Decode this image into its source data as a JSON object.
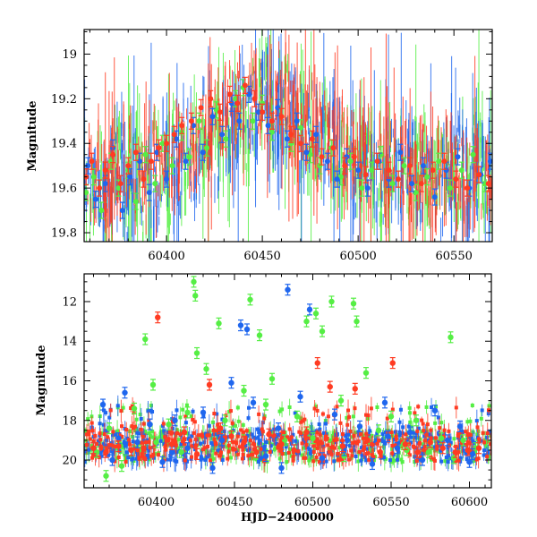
{
  "colors": {
    "green": "#55ee44",
    "blue": "#1f66ee",
    "red": "#ff3b22",
    "frame": "#000000"
  },
  "chart_data": [
    {
      "type": "scatter",
      "title": "",
      "xlabel": "",
      "ylabel": "Magnitude",
      "xlim": [
        60357,
        60570
      ],
      "ylim": [
        19.84,
        18.89
      ],
      "y_inverted": true,
      "grid": false,
      "x_ticks": [
        60400,
        60450,
        60500,
        60550
      ],
      "x_tick_labels": [
        "60400",
        "60450",
        "60500",
        "60550"
      ],
      "y_ticks": [
        19.0,
        19.2,
        19.4,
        19.6,
        19.8
      ],
      "y_tick_labels": [
        "19",
        "19.2",
        "19.4",
        "19.6",
        "19.8"
      ],
      "series": [
        {
          "color": "green",
          "x": [
            60358,
            60362,
            60366,
            60371,
            60375,
            60380,
            60384,
            60389,
            60394,
            60398,
            60403,
            60408,
            60412,
            60417,
            60421,
            60426,
            60431,
            60436,
            60440,
            60445,
            60450,
            60455,
            60460,
            60465,
            60470,
            60475,
            60480,
            60486,
            60491,
            60496,
            60502,
            60507,
            60512,
            60518,
            60524,
            60530,
            60536,
            60542,
            60548,
            60554,
            60560,
            60566
          ],
          "y": [
            19.62,
            19.55,
            19.7,
            19.48,
            19.6,
            19.52,
            19.66,
            19.45,
            19.58,
            19.4,
            19.5,
            19.35,
            19.46,
            19.3,
            19.42,
            19.25,
            19.38,
            19.2,
            19.15,
            19.3,
            19.22,
            19.35,
            19.28,
            19.4,
            19.33,
            19.45,
            19.5,
            19.42,
            19.55,
            19.48,
            19.6,
            19.52,
            19.45,
            19.58,
            19.5,
            19.62,
            19.55,
            19.48,
            19.6,
            19.52,
            19.45,
            19.58
          ]
        },
        {
          "color": "blue",
          "x": [
            60359,
            60363,
            60368,
            60372,
            60377,
            60381,
            60386,
            60391,
            60395,
            60400,
            60405,
            60410,
            60414,
            60419,
            60424,
            60429,
            60434,
            60438,
            60443,
            60448,
            60453,
            60458,
            60463,
            60468,
            60473,
            60478,
            60484,
            60489,
            60494,
            60500,
            60505,
            60511,
            60516,
            60522,
            60528,
            60534,
            60540,
            60546,
            60552,
            60558,
            60564,
            60569
          ],
          "y": [
            19.5,
            19.65,
            19.58,
            19.42,
            19.7,
            19.55,
            19.48,
            19.62,
            19.44,
            19.56,
            19.38,
            19.48,
            19.32,
            19.44,
            19.28,
            19.36,
            19.22,
            19.3,
            19.18,
            19.26,
            19.32,
            19.24,
            19.38,
            19.3,
            19.44,
            19.36,
            19.48,
            19.56,
            19.46,
            19.52,
            19.6,
            19.48,
            19.56,
            19.44,
            19.58,
            19.5,
            19.64,
            19.52,
            19.46,
            19.6,
            19.54,
            19.48
          ]
        },
        {
          "color": "red",
          "x": [
            60358,
            60361,
            60365,
            60368,
            60372,
            60376,
            60380,
            60384,
            60388,
            60392,
            60396,
            60400,
            60404,
            60408,
            60413,
            60418,
            60423,
            60428,
            60433,
            60437,
            60441,
            60446,
            60450,
            60455,
            60460,
            60465,
            60470,
            60476,
            60481,
            60487,
            60493,
            60498,
            60504,
            60510,
            60516,
            60521,
            60527,
            60533,
            60539,
            60545,
            60551,
            60557,
            60563,
            60568
          ],
          "y": [
            19.55,
            19.48,
            19.6,
            19.52,
            19.45,
            19.58,
            19.5,
            19.44,
            19.56,
            19.48,
            19.42,
            19.4,
            19.36,
            19.32,
            19.3,
            19.24,
            19.2,
            19.26,
            19.18,
            19.22,
            19.14,
            19.2,
            19.26,
            19.3,
            19.28,
            19.36,
            19.4,
            19.38,
            19.46,
            19.42,
            19.5,
            19.46,
            19.54,
            19.48,
            19.52,
            19.56,
            19.5,
            19.58,
            19.52,
            19.48,
            19.56,
            19.6,
            19.54,
            19.58
          ]
        }
      ]
    },
    {
      "type": "scatter",
      "title": "",
      "xlabel": "HJD−2400000",
      "ylabel": "Magnitude",
      "xlim": [
        60354,
        60614
      ],
      "ylim": [
        21.4,
        10.6
      ],
      "y_inverted": true,
      "grid": false,
      "x_ticks": [
        60400,
        60450,
        60500,
        60550,
        60600
      ],
      "x_tick_labels": [
        "60400",
        "60450",
        "60500",
        "60550",
        "60600"
      ],
      "y_ticks": [
        12,
        14,
        16,
        18,
        20
      ],
      "y_tick_labels": [
        "12",
        "14",
        "16",
        "18",
        "20"
      ],
      "series": [
        {
          "color": "green",
          "x": [
            60362,
            60370,
            60378,
            60386,
            60393,
            60400,
            60408,
            60416,
            60424,
            60425,
            60426,
            60432,
            60440,
            60448,
            60456,
            60460,
            60466,
            60474,
            60482,
            60490,
            60496,
            60502,
            60506,
            60512,
            60518,
            60526,
            60528,
            60534,
            60542,
            60550,
            60558,
            60566,
            60574,
            60582,
            60588,
            60596,
            60604,
            60368,
            60398,
            60420,
            60444,
            60470,
            60500,
            60520,
            60560,
            60590
          ],
          "y": [
            19.6,
            18.4,
            20.3,
            17.4,
            13.9,
            19.1,
            18.2,
            19.6,
            11.0,
            11.7,
            14.6,
            15.4,
            13.1,
            18.6,
            16.5,
            11.9,
            13.7,
            15.9,
            19.0,
            17.8,
            13.0,
            12.6,
            13.5,
            12.0,
            17.0,
            12.1,
            13.0,
            15.6,
            18.5,
            17.8,
            19.2,
            18.0,
            19.6,
            18.9,
            13.8,
            19.0,
            19.4,
            20.8,
            16.2,
            17.6,
            18.0,
            17.2,
            18.9,
            19.8,
            19.5,
            19.9
          ]
        },
        {
          "color": "blue",
          "x": [
            60360,
            60366,
            60372,
            60380,
            60388,
            60396,
            60404,
            60412,
            60420,
            60430,
            60436,
            60442,
            60448,
            60454,
            60462,
            60470,
            60478,
            60484,
            60492,
            60498,
            60506,
            60514,
            60522,
            60530,
            60538,
            60546,
            60554,
            60562,
            60570,
            60578,
            60586,
            60594,
            60602,
            60376,
            60410,
            60458,
            60480,
            60520,
            60548,
            60600
          ],
          "y": [
            19.4,
            17.2,
            20.0,
            16.6,
            19.1,
            18.2,
            20.1,
            18.0,
            19.4,
            17.6,
            20.4,
            19.0,
            16.1,
            13.2,
            17.1,
            19.8,
            18.4,
            11.4,
            16.8,
            12.4,
            19.9,
            17.7,
            19.0,
            18.3,
            20.2,
            17.1,
            19.4,
            18.6,
            20.0,
            17.5,
            19.0,
            18.3,
            19.7,
            18.9,
            19.6,
            13.4,
            20.4,
            19.5,
            18.8,
            20.1
          ]
        },
        {
          "color": "red",
          "x": [
            60360,
            60368,
            60376,
            60384,
            60392,
            60401,
            60410,
            60418,
            60426,
            60434,
            60441,
            60448,
            60456,
            60464,
            60472,
            60480,
            60488,
            60496,
            60503,
            60511,
            60519,
            60527,
            60535,
            60543,
            60551,
            60559,
            60567,
            60575,
            60583,
            60591,
            60599,
            60606
          ],
          "y": [
            19.4,
            19.6,
            19.3,
            19.5,
            19.4,
            12.8,
            19.2,
            18.6,
            19.7,
            16.2,
            18.4,
            18.8,
            19.1,
            19.6,
            18.7,
            19.2,
            19.5,
            18.6,
            15.1,
            16.3,
            19.3,
            16.4,
            19.0,
            19.6,
            15.1,
            19.2,
            19.6,
            19.1,
            19.4,
            19.6,
            19.5,
            19.4
          ]
        }
      ]
    }
  ]
}
